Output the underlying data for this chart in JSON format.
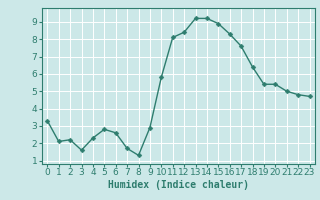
{
  "x": [
    0,
    1,
    2,
    3,
    4,
    5,
    6,
    7,
    8,
    9,
    10,
    11,
    12,
    13,
    14,
    15,
    16,
    17,
    18,
    19,
    20,
    21,
    22,
    23
  ],
  "y": [
    3.3,
    2.1,
    2.2,
    1.6,
    2.3,
    2.8,
    2.6,
    1.7,
    1.3,
    2.9,
    5.8,
    8.1,
    8.4,
    9.2,
    9.2,
    8.9,
    8.3,
    7.6,
    6.4,
    5.4,
    5.4,
    5.0,
    4.8,
    4.7
  ],
  "line_color": "#2e7d6e",
  "marker": "D",
  "marker_size": 2.5,
  "linewidth": 1.0,
  "xlabel": "Humidex (Indice chaleur)",
  "xlim": [
    -0.5,
    23.5
  ],
  "ylim": [
    0.8,
    9.8
  ],
  "yticks": [
    1,
    2,
    3,
    4,
    5,
    6,
    7,
    8,
    9
  ],
  "xticks": [
    0,
    1,
    2,
    3,
    4,
    5,
    6,
    7,
    8,
    9,
    10,
    11,
    12,
    13,
    14,
    15,
    16,
    17,
    18,
    19,
    20,
    21,
    22,
    23
  ],
  "background_color": "#cce8e8",
  "grid_color": "#ffffff",
  "tick_color": "#2e7d6e",
  "label_color": "#2e7d6e",
  "xlabel_fontsize": 7,
  "tick_fontsize": 6.5
}
